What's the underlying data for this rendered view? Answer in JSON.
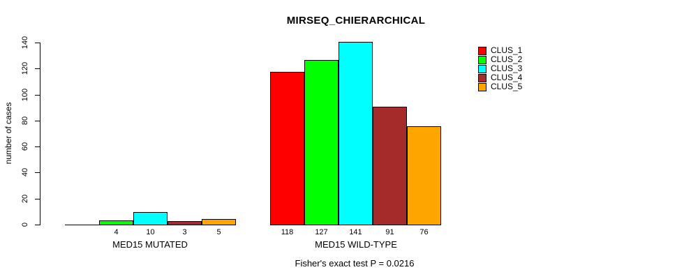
{
  "chart_data": {
    "type": "bar",
    "title": "MIRSEQ_CHIERARCHICAL",
    "ylabel": "number of cases",
    "xlabel": "",
    "ylim": [
      0,
      140
    ],
    "yticks": [
      0,
      20,
      40,
      60,
      80,
      100,
      120,
      140
    ],
    "grid": false,
    "legend_position": "right",
    "groups": [
      "MED15 MUTATED",
      "MED15 WILD-TYPE"
    ],
    "series": [
      {
        "name": "CLUS_1",
        "color": "#ff0000",
        "values": [
          0,
          118
        ]
      },
      {
        "name": "CLUS_2",
        "color": "#00ff00",
        "values": [
          4,
          127
        ]
      },
      {
        "name": "CLUS_3",
        "color": "#00ffff",
        "values": [
          10,
          141
        ]
      },
      {
        "name": "CLUS_4",
        "color": "#a52a2a",
        "values": [
          3,
          91
        ]
      },
      {
        "name": "CLUS_5",
        "color": "#ffa500",
        "values": [
          5,
          76
        ]
      }
    ],
    "bar_labels": [
      [
        "",
        "4",
        "10",
        "3",
        "5"
      ],
      [
        "118",
        "127",
        "141",
        "91",
        "76"
      ]
    ],
    "annotation": "Fisher's exact test P = 0.0216"
  }
}
